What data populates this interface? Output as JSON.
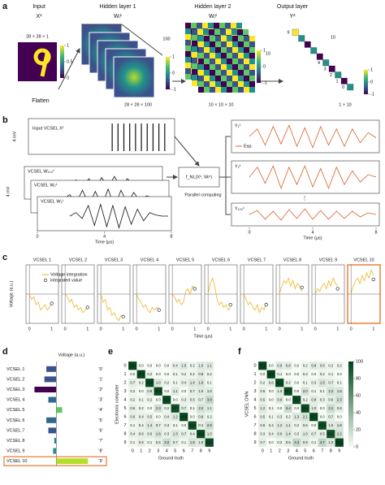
{
  "panel_labels": [
    "a",
    "b",
    "c",
    "d",
    "e",
    "f"
  ],
  "panel_a": {
    "input_title": "Input",
    "input_symbol": "X¹",
    "input_size": "28 × 28 × 1",
    "input_cbar_ticks": [
      1,
      0.5,
      0
    ],
    "flatten": "Flatten",
    "hidden1_title": "Hidden layer 1",
    "hidden1_symbol": "Wᵢ¹",
    "hidden1_size": "28 × 28 × 100",
    "hidden1_count": "100",
    "hidden1_cbar_ticks": [
      1,
      0,
      -1
    ],
    "hidden2_title": "Hidden layer 2",
    "hidden2_symbol": "Wᵢ²",
    "hidden2_size": "10 × 10 × 10",
    "hidden2_count": "10",
    "hidden2_cbar_ticks": [
      1,
      0,
      -1
    ],
    "output_title": "Output layer",
    "output_symbol": "Y²",
    "output_size": "1 × 10",
    "output_count": "10",
    "output_digits": [
      "9",
      "4",
      "3",
      "2",
      "1",
      "0"
    ],
    "output_cbar_ticks": [
      1,
      0,
      -1
    ]
  },
  "panel_b": {
    "input_label": "Input VCSEL X¹",
    "scale_label": "4 mV",
    "function": "f_NL(Xⁿ, Wᵢⁿ)",
    "parallel": "Parallel computing",
    "legend": "Exp.",
    "xticks": [
      0,
      4,
      8
    ],
    "xlim": [
      0,
      8
    ],
    "ylim": [
      -1,
      1
    ],
    "xlabel": "Time (μs)",
    "x": [
      0,
      0.5,
      1,
      1.5,
      2,
      2.5,
      3,
      3.5,
      4,
      4.5,
      5,
      5.5,
      6,
      6.5,
      7,
      7.5,
      8
    ],
    "input": [
      0,
      0,
      0,
      0,
      0,
      0,
      1,
      1,
      1,
      1,
      1,
      1,
      1,
      1,
      1,
      1,
      0
    ],
    "weights": [
      {
        "name": "VCSEL W₁₀₀¹",
        "values": [
          0,
          0.2,
          -0.1,
          0.5,
          -0.2,
          0.6,
          -0.3,
          0.7,
          -0.2,
          0.8,
          -0.2,
          0.6,
          0.1,
          0.4,
          0.2,
          0.1,
          0
        ]
      },
      {
        "name": "VCSEL W₂¹",
        "values": [
          0,
          0.4,
          -0.3,
          0.8,
          -0.5,
          0.7,
          -0.6,
          0.9,
          -0.7,
          0.8,
          -0.4,
          0.6,
          -0.2,
          0.3,
          0.1,
          0,
          0
        ]
      },
      {
        "name": "VCSEL W₁¹",
        "values": [
          0,
          0.3,
          -0.2,
          0.9,
          -0.8,
          1,
          -0.9,
          0.9,
          -1,
          0.8,
          -0.7,
          0.6,
          -0.4,
          0.3,
          0.1,
          0,
          0
        ]
      }
    ],
    "outputs": [
      {
        "name": "Y₁¹",
        "values": [
          0,
          0.6,
          -0.7,
          0.8,
          -0.6,
          0.9,
          -0.8,
          0.7,
          -0.9,
          0.8,
          -0.7,
          0.6,
          -0.8,
          0.6,
          -0.5,
          0.3,
          -0.1
        ]
      },
      {
        "name": "Y₂¹",
        "values": [
          0,
          0.8,
          -0.5,
          0.9,
          -0.9,
          0.8,
          -0.6,
          0.9,
          -0.8,
          0.7,
          -0.9,
          0.8,
          -0.6,
          0.5,
          -0.4,
          0.2,
          0
        ]
      },
      {
        "name": "Y₁₀₀¹",
        "values": [
          0,
          0.5,
          -0.6,
          0.4,
          -0.7,
          0.6,
          -0.5,
          0.7,
          -0.6,
          0.5,
          -0.6,
          0.4,
          -0.5,
          0.4,
          -0.3,
          0.2,
          0
        ]
      }
    ],
    "output_color": "#d9622b"
  },
  "chart_data": [
    {
      "type": "line",
      "ylabel": "Voltage (a.u.)",
      "xlabel": "Time (μs)",
      "legend": [
        "Voltage integration",
        "integrated value"
      ],
      "x": [
        0,
        0.1,
        0.2,
        0.3,
        0.4,
        0.5,
        0.6,
        0.7,
        0.8,
        0.9,
        1
      ],
      "xticks": [
        0,
        1
      ],
      "xlim": [
        -0.15,
        1.3
      ],
      "ylim": [
        -1.1,
        1.1
      ],
      "integrated_x": 1,
      "color": "#f0b323",
      "highlight": 9,
      "highlight_color": "#e8772e",
      "panels": [
        {
          "title": "VCSEL 1",
          "values": [
            0,
            -0.2,
            -0.1,
            -0.4,
            -0.3,
            -0.6,
            -0.5,
            -0.4,
            -0.6,
            -0.5,
            -0.3
          ],
          "integrated": -0.35
        },
        {
          "title": "VCSEL 2",
          "values": [
            0,
            -0.1,
            -0.3,
            -0.2,
            -0.5,
            -0.4,
            -0.6,
            -0.5,
            -0.7,
            -0.6,
            -0.5
          ],
          "integrated": -0.5
        },
        {
          "title": "VCSEL 3",
          "values": [
            0,
            -0.3,
            -0.2,
            -0.6,
            -0.5,
            -0.8,
            -0.7,
            -0.9,
            -1,
            -0.8,
            -0.9
          ],
          "integrated": -0.85
        },
        {
          "title": "VCSEL 4",
          "values": [
            0,
            -0.2,
            -0.3,
            -0.5,
            -0.4,
            -0.6,
            -0.7,
            -0.5,
            -0.6,
            -0.5,
            -0.6
          ],
          "integrated": -0.6
        },
        {
          "title": "VCSEL 5",
          "values": [
            0,
            -0.1,
            -0.3,
            -0.2,
            -0.4,
            -0.3,
            0.1,
            0.2,
            0,
            0.3,
            0.2
          ],
          "integrated": 0.2
        },
        {
          "title": "VCSEL 6",
          "values": [
            0,
            0.4,
            0.6,
            0.3,
            -0.2,
            -0.4,
            -0.3,
            -0.5,
            -0.4,
            -0.6,
            -0.5
          ],
          "integrated": -0.4
        },
        {
          "title": "VCSEL 7",
          "values": [
            0,
            -0.2,
            -0.4,
            -0.3,
            -0.5,
            -0.6,
            -0.4,
            -0.7,
            -0.5,
            -0.6,
            -0.3
          ],
          "integrated": -0.4
        },
        {
          "title": "VCSEL 8",
          "values": [
            0,
            0.3,
            0.5,
            0.4,
            0.6,
            0.3,
            0.5,
            0.2,
            0.4,
            0.3,
            0.1
          ],
          "integrated": 0.25
        },
        {
          "title": "VCSEL 9",
          "values": [
            0,
            0.2,
            0.1,
            0.3,
            0.4,
            0.2,
            0.5,
            0.3,
            0.6,
            0.4,
            0.3
          ],
          "integrated": 0.2
        },
        {
          "title": "VCSEL 10",
          "values": [
            0,
            0.3,
            0.5,
            0.6,
            0.4,
            0.7,
            0.5,
            0.8,
            0.6,
            0.9,
            0.7
          ],
          "integrated": 0.55
        }
      ]
    },
    {
      "type": "hbar",
      "xlabel": "Voltage (a.u.)",
      "categories": [
        "VCSEL 1",
        "VCSEL 2",
        "VCSEL 3",
        "VCSEL 4",
        "VCSEL 5",
        "VCSEL 6",
        "VCSEL 7",
        "VCSEL 8",
        "VCSEL 9",
        "VCSEL 10"
      ],
      "class_labels": [
        "'0'",
        "'1'",
        "'2'",
        "'3'",
        "'4'",
        "'5'",
        "'6'",
        "'7'",
        "'8'",
        "'9'"
      ],
      "values": [
        -0.25,
        -0.3,
        -0.55,
        -0.2,
        0.15,
        -0.25,
        -0.2,
        -0.05,
        -0.08,
        0.8
      ],
      "colors": [
        "#3b528b",
        "#3b528b",
        "#440154",
        "#31688e",
        "#5ec962",
        "#31688e",
        "#3b528b",
        "#26828e",
        "#21918c",
        "#b5de2b"
      ],
      "xlim": [
        -0.6,
        1.0
      ],
      "highlight": 9,
      "highlight_color": "#e8772e"
    },
    {
      "type": "heatmap",
      "ylabel": "Electronic computer",
      "xlabel": "Ground truth",
      "xticks": [
        0,
        1,
        2,
        3,
        4,
        5,
        6,
        7,
        8,
        9
      ],
      "yticks": [
        0,
        1,
        2,
        3,
        4,
        5,
        6,
        7,
        8,
        9
      ],
      "vlim": [
        0,
        100
      ],
      "colormap": [
        "#f7fcf5",
        "#00441b"
      ],
      "values": [
        [
          96.1,
          0.0,
          0.0,
          0.0,
          0.0,
          0.4,
          1.0,
          0.2,
          1.0,
          1.1
        ],
        [
          0.0,
          97.1,
          0.2,
          0.0,
          0.0,
          0.1,
          0.2,
          0.2,
          0.8,
          0.2
        ],
        [
          0.7,
          0.2,
          95.0,
          1.0,
          0.2,
          0.1,
          0.4,
          1.4,
          1.6,
          0.1
        ],
        [
          0.2,
          0.0,
          0.9,
          93.9,
          0.0,
          1.1,
          0.0,
          0.7,
          1.0,
          1.0
        ],
        [
          0.2,
          0.1,
          0.2,
          0.0,
          93.4,
          0.0,
          0.3,
          0.5,
          0.7,
          3.8
        ],
        [
          0.6,
          0.2,
          0.0,
          2.3,
          0.2,
          87.7,
          0.7,
          0.1,
          2.2,
          1.1
        ],
        [
          0.6,
          0.4,
          0.5,
          0.0,
          0.4,
          1.2,
          94.9,
          0.0,
          0.8,
          0.2
        ],
        [
          0.1,
          0.4,
          1.4,
          0.7,
          0.3,
          0.1,
          0.0,
          91.8,
          0.4,
          2.8
        ],
        [
          0.4,
          0.6,
          0.6,
          1.6,
          0.3,
          1.3,
          0.7,
          0.4,
          94.3,
          1.0
        ],
        [
          0.1,
          0.5,
          0.1,
          0.5,
          3.2,
          0.7,
          0.1,
          1.8,
          1.0,
          93.9
        ]
      ],
      "value_labels": [
        [
          "96.1",
          "0.0",
          "0.0",
          "0.0",
          "0.0",
          "0.4",
          "1.0",
          "0.2",
          "1.0",
          "1.1"
        ],
        [
          "0.0",
          "97.1",
          "0.2",
          "0.0",
          "0.0",
          "0.1",
          "0.2",
          "0.2",
          "0.8",
          "0.2"
        ],
        [
          "0.7",
          "0.2",
          "95.0",
          "1.0",
          "0.2",
          "0.1",
          "0.4",
          "1.4",
          "1.6",
          "0.1"
        ],
        [
          "0.2",
          "0.0",
          "0.9",
          "93.9",
          "0.0",
          "1.1",
          "0.0",
          "0.7",
          "1.0",
          "1.0"
        ],
        [
          "0.2",
          "0.1",
          "0.2",
          "0.0",
          "93.4",
          "0.0",
          "0.3",
          "0.5",
          "0.7",
          "3.8"
        ],
        [
          "0.6",
          "0.2",
          "0.0",
          "2.3",
          "0.2",
          "87.7",
          "0.7",
          "0.1",
          "2.2",
          "1.1"
        ],
        [
          "0.6",
          "0.4",
          "0.5",
          "0.0",
          "0.4",
          "1.2",
          "94.9",
          "0.0",
          "0.8",
          "0.2"
        ],
        [
          "0.1",
          "0.4",
          "1.4",
          "0.7",
          "0.3",
          "0.1",
          "0.0",
          "91.8",
          "0.4",
          "2.8"
        ],
        [
          "0.4",
          "0.6",
          "0.6",
          "1.6",
          "0.3",
          "1.3",
          "0.7",
          "0.4",
          "94.3",
          "1.0"
        ],
        [
          "0.1",
          "0.5",
          "0.1",
          "0.5",
          "3.2",
          "0.7",
          "0.1",
          "1.8",
          "1.0",
          "93.9"
        ]
      ]
    },
    {
      "type": "heatmap",
      "ylabel": "VCSEL ONN",
      "xlabel": "Ground truth",
      "xticks": [
        0,
        1,
        2,
        3,
        4,
        5,
        6,
        7,
        8,
        9
      ],
      "yticks": [
        0,
        1,
        2,
        3,
        4,
        5,
        6,
        7,
        8,
        9
      ],
      "vlim": [
        0,
        100
      ],
      "colormap": [
        "#f7fcf5",
        "#00441b"
      ],
      "colorbar_ticks": [
        0,
        20,
        40,
        60,
        80,
        100
      ],
      "values": [
        [
          95.2,
          0.0,
          0.9,
          0.8,
          0.0,
          0.2,
          0.9,
          0.6,
          0.2,
          0.2
        ],
        [
          0.0,
          98.4,
          0.1,
          0.0,
          0.0,
          0.2,
          0.0,
          0.2,
          0.1,
          0.0
        ],
        [
          0.2,
          0.6,
          95.1,
          0.2,
          0.0,
          0.1,
          0.3,
          1.5,
          0.7,
          0.1
        ],
        [
          0.5,
          0.0,
          1.0,
          92.3,
          0.0,
          2.0,
          0.1,
          0.1,
          2.2,
          1.5
        ],
        [
          0.5,
          0.0,
          0.9,
          0.0,
          93.7,
          0.2,
          0.9,
          0.3,
          0.6,
          2.3
        ],
        [
          1.2,
          0.1,
          0.0,
          3.4,
          0.0,
          93.2,
          1.0,
          0.0,
          3.1,
          0.6
        ],
        [
          0.5,
          0.1,
          0.3,
          0.2,
          1.3,
          2.1,
          96.1,
          0.0,
          0.7,
          0.0
        ],
        [
          0.6,
          0.4,
          1.2,
          1.1,
          0.2,
          0.6,
          0.0,
          91.3,
          1.0,
          1.6
        ],
        [
          0.3,
          0.4,
          0.9,
          1.4,
          0.3,
          1.0,
          0.7,
          0.5,
          85.2,
          2.2
        ],
        [
          0.7,
          0.0,
          0.2,
          0.6,
          4.3,
          0.9,
          0.1,
          4.7,
          1.0,
          96.5
        ]
      ],
      "value_labels": [
        [
          "95.2",
          "0.0",
          "0.9",
          "0.8",
          "0.0",
          "0.2",
          "0.9",
          "0.6",
          "0.2",
          "0.2"
        ],
        [
          "0.0",
          "98.4",
          "0.1",
          "0.0",
          "0.0",
          "0.2",
          "0.0",
          "0.2",
          "0.1",
          "0.0"
        ],
        [
          "0.2",
          "0.6",
          "95.1",
          "0.2",
          "0.0",
          "0.1",
          "0.3",
          "1.5",
          "0.7",
          "0.1"
        ],
        [
          "0.5",
          "0.0",
          "1.0",
          "92.3",
          "0.0",
          "2.0",
          "0.1",
          "0.1",
          "2.2",
          "1.5"
        ],
        [
          "0.5",
          "0.0",
          "0.9",
          "0.0",
          "93.7",
          "0.2",
          "0.9",
          "0.3",
          "0.6",
          "2.3"
        ],
        [
          "1.2",
          "0.1",
          "0.0",
          "3.4",
          "0.0",
          "93.2",
          "1.0",
          "0.0",
          "3.1",
          "0.6"
        ],
        [
          "0.5",
          "0.1",
          "0.3",
          "0.2",
          "1.3",
          "2.1",
          "96.1",
          "0.0",
          "0.7",
          "0.0"
        ],
        [
          "0.6",
          "0.4",
          "1.2",
          "1.1",
          "0.2",
          "0.6",
          "0.0",
          "91.3",
          "1.0",
          "1.6"
        ],
        [
          "0.3",
          "0.4",
          "0.9",
          "1.4",
          "0.3",
          "1.0",
          "0.7",
          "0.5",
          "85.2",
          "2.2"
        ],
        [
          "0.7",
          "0.0",
          "0.2",
          "0.6",
          "4.3",
          "0.9",
          "0.1",
          "4.7",
          "1.0",
          "96.5"
        ]
      ]
    }
  ]
}
